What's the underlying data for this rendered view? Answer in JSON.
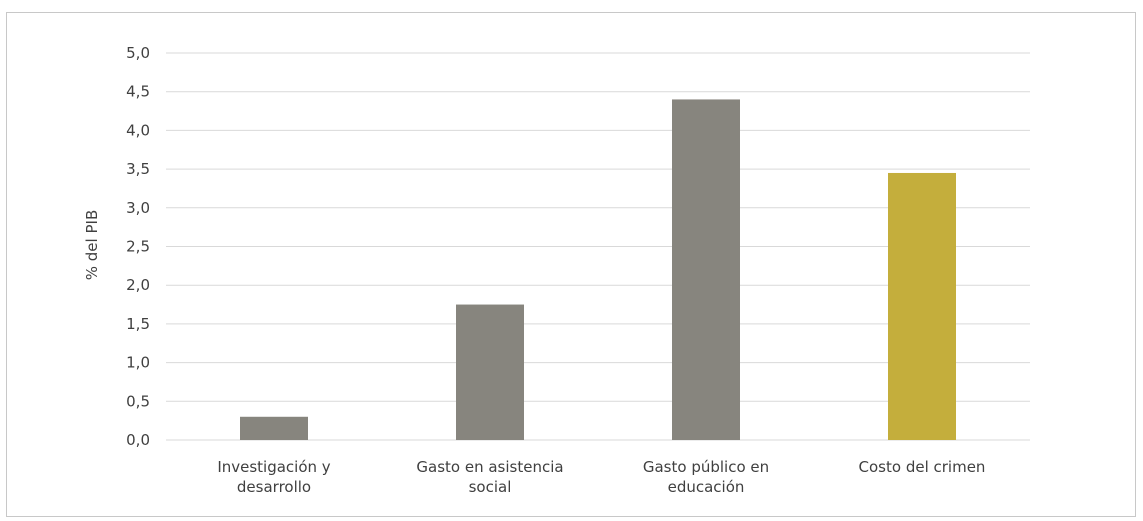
{
  "chart_data": {
    "type": "bar",
    "categories": [
      [
        "Investigación y",
        "desarrollo"
      ],
      [
        "Gasto en asistencia",
        "social"
      ],
      [
        "Gasto público en",
        "educación"
      ],
      [
        "Costo del crimen"
      ]
    ],
    "values": [
      0.3,
      1.75,
      4.4,
      3.45
    ],
    "colors": [
      "#87857e",
      "#87857e",
      "#87857e",
      "#c4ae3c"
    ],
    "ylabel": "% del PIB",
    "xlabel": "",
    "ylim": [
      0,
      5
    ],
    "yticks": [
      "0,0",
      "0,5",
      "1,0",
      "1,5",
      "2,0",
      "2,5",
      "3,0",
      "3,5",
      "4,0",
      "4,5",
      "5,0"
    ],
    "grid": true,
    "grid_color": "#d9d9d9"
  }
}
